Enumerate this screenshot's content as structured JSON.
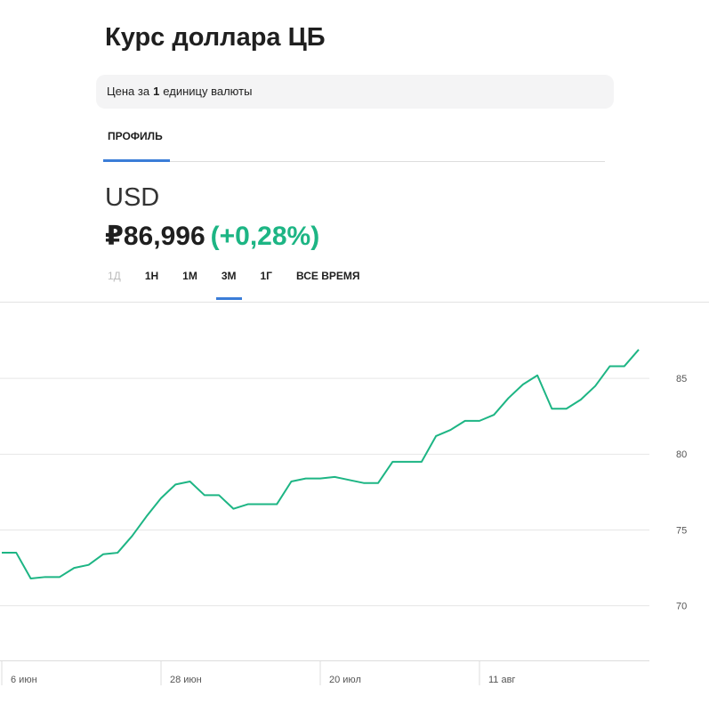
{
  "title": "Курс доллара ЦБ",
  "note": {
    "parts": [
      "Цена за",
      "1",
      "единицу валюты"
    ]
  },
  "tabs": [
    "ПРОФИЛЬ"
  ],
  "ticker": "USD",
  "price": "₽86,996",
  "change": "(+0,28%)",
  "periods": [
    "1Д",
    "1Н",
    "1М",
    "3М",
    "1Г",
    "ВСЕ ВРЕМЯ"
  ],
  "active_period": "3М",
  "disabled_period": "1Д",
  "chart_data": {
    "type": "line",
    "categories": [
      "6 июн",
      null,
      null,
      null,
      null,
      null,
      null,
      null,
      null,
      null,
      null,
      "28 июн",
      null,
      null,
      null,
      null,
      null,
      null,
      null,
      null,
      null,
      null,
      "20 июл",
      null,
      null,
      null,
      null,
      null,
      null,
      null,
      null,
      null,
      null,
      "11 авг",
      null,
      null,
      null,
      null,
      null,
      null,
      null,
      null,
      null,
      null,
      null
    ],
    "values": [
      73.5,
      73.5,
      71.8,
      71.9,
      71.9,
      72.5,
      72.7,
      73.4,
      73.5,
      74.6,
      75.9,
      77.1,
      78.0,
      78.2,
      77.3,
      77.3,
      76.4,
      76.7,
      76.7,
      76.7,
      78.2,
      78.4,
      78.4,
      78.5,
      78.3,
      78.1,
      78.1,
      79.5,
      79.5,
      79.5,
      81.2,
      81.6,
      82.2,
      82.2,
      82.6,
      83.7,
      84.6,
      85.2,
      83.0,
      83.0,
      83.6,
      84.5,
      85.8,
      85.8,
      86.9
    ],
    "color": "#1db584",
    "ylim": [
      66.4,
      90
    ],
    "yticks": [
      70,
      75,
      80,
      85
    ],
    "grid": true
  }
}
